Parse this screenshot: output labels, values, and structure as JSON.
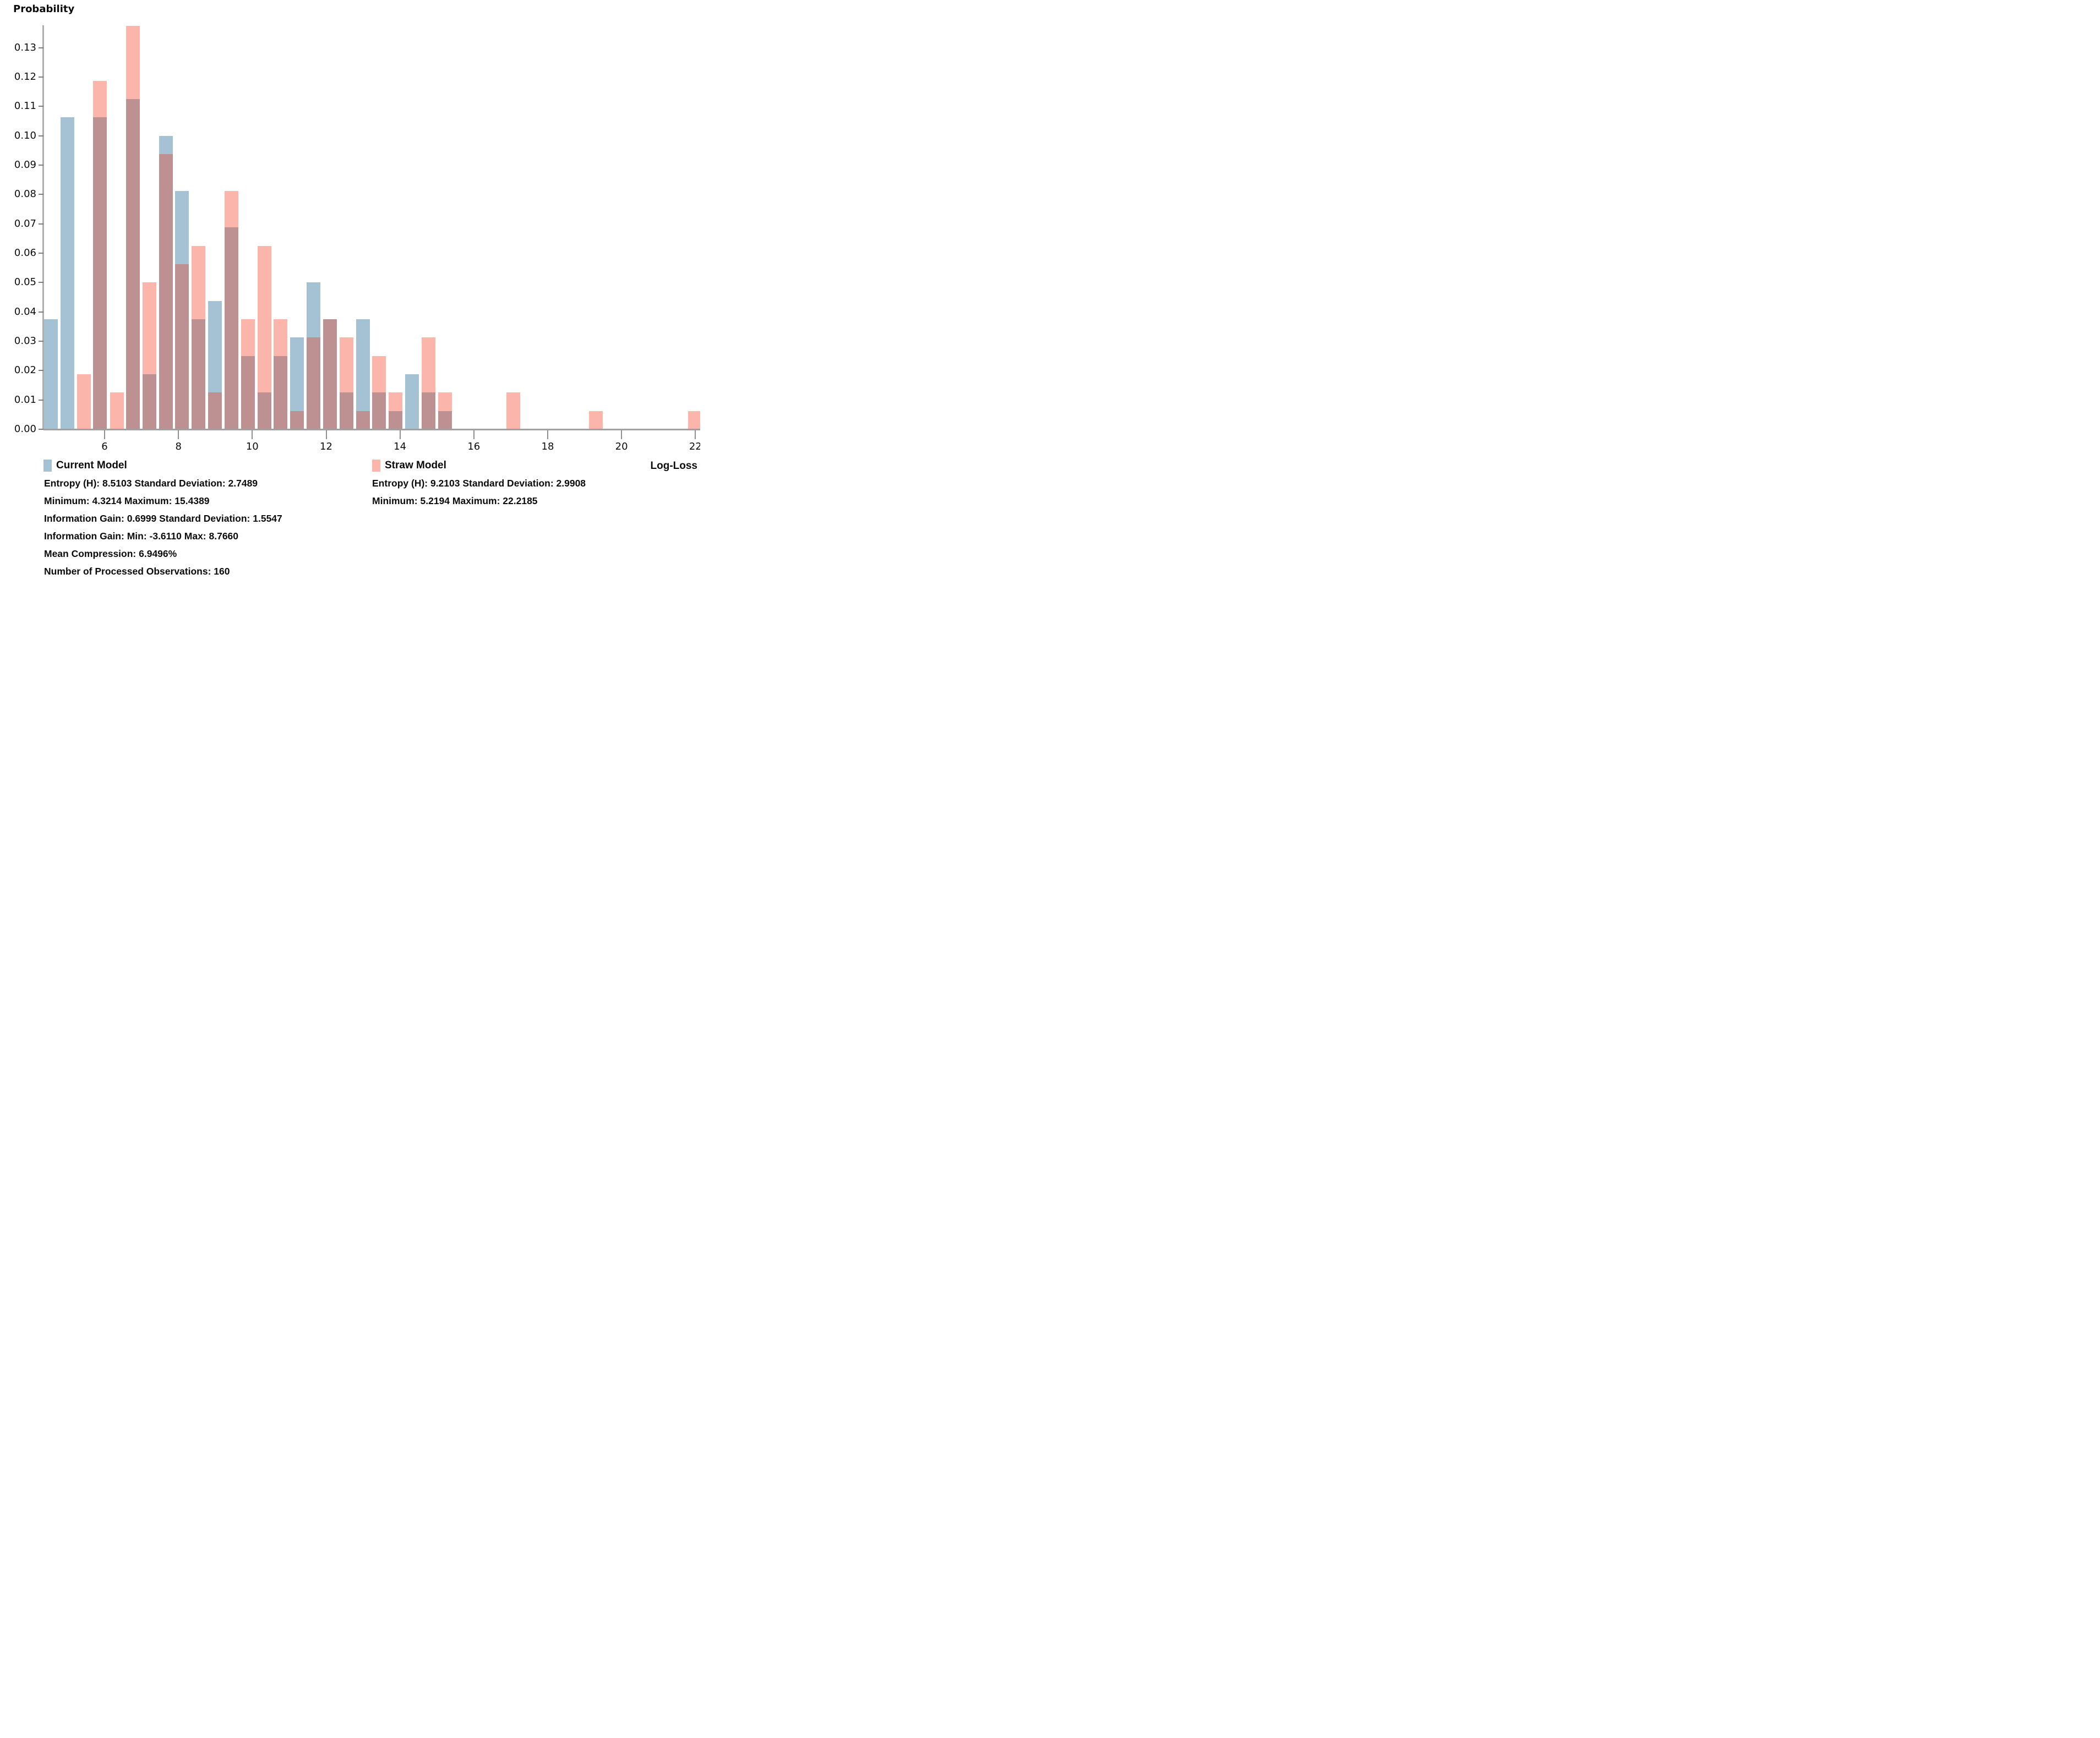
{
  "axis": {
    "y_title": "Probability",
    "x_title": "Log-Loss"
  },
  "legend": {
    "current": {
      "label": "Current Model",
      "color": "#a5c1d4"
    },
    "straw": {
      "label": "Straw Model",
      "color": "#fbb5ab"
    }
  },
  "stats": {
    "current": [
      "Entropy (H): 8.5103 Standard Deviation: 2.7489",
      "Minimum: 4.3214 Maximum: 15.4389",
      "Information Gain: 0.6999 Standard Deviation: 1.5547",
      "Information Gain: Min: -3.6110 Max: 8.7660",
      "Mean Compression: 6.9496%",
      "Number of Processed Observations: 160"
    ],
    "straw": [
      "Entropy (H): 9.2103 Standard Deviation: 2.9908",
      "Minimum: 5.2194 Maximum: 22.2185"
    ]
  },
  "chart_data": {
    "type": "bar",
    "subtype": "overlaid-histogram",
    "ylabel": "Probability",
    "xlabel": "Log-Loss",
    "x_ticks": [
      6,
      8,
      10,
      12,
      14,
      16,
      18,
      20,
      22
    ],
    "y_ticks": [
      "0.00",
      "0.01",
      "0.02",
      "0.03",
      "0.04",
      "0.05",
      "0.06",
      "0.07",
      "0.08",
      "0.09",
      "0.10",
      "0.11",
      "0.12",
      "0.13"
    ],
    "x_range": [
      4.345,
      22.13
    ],
    "y_range": [
      0,
      0.1376
    ],
    "grid": false,
    "legend_position": "bottom",
    "colors": {
      "current": "#a5c1d4",
      "straw": "#fbb5ab",
      "overlap": "#bd9091",
      "axis_line": "#aeaeae",
      "baseline": "#a1a1a1",
      "tick": "#8f8f8f"
    },
    "series": [
      {
        "name": "Current Model",
        "color": "#a5c1d4"
      },
      {
        "name": "Straw Model",
        "color": "#fbb5ab"
      }
    ],
    "bar_pad_units": 0.035,
    "bars": [
      {
        "x0": 4.3214,
        "x1": 4.7661,
        "current": 0.0375,
        "straw": 0
      },
      {
        "x0": 4.7661,
        "x1": 5.2108,
        "current": 0.10625,
        "straw": 0
      },
      {
        "x0": 5.2194,
        "x1": 5.6667,
        "current": 0,
        "straw": 0.01875
      },
      {
        "x0": 5.6555,
        "x1": 6.1002,
        "current": 0.10625,
        "straw": 0.11875
      },
      {
        "x0": 6.114,
        "x1": 6.5613,
        "current": 0,
        "straw": 0.0125
      },
      {
        "x0": 6.5449,
        "x1": 6.9896,
        "current": 0.1125,
        "straw": 0.1375
      },
      {
        "x0": 6.9896,
        "x1": 7.4343,
        "current": 0.01875,
        "straw": 0.05
      },
      {
        "x0": 7.4343,
        "x1": 7.879,
        "current": 0.1,
        "straw": 0.09375
      },
      {
        "x0": 7.879,
        "x1": 8.3237,
        "current": 0.08125,
        "straw": 0.05625
      },
      {
        "x0": 8.3237,
        "x1": 8.7684,
        "current": 0.0375,
        "straw": 0.0625
      },
      {
        "x0": 8.7684,
        "x1": 9.2131,
        "current": 0.04375,
        "straw": 0.0125
      },
      {
        "x0": 9.2131,
        "x1": 9.6578,
        "current": 0.06875,
        "straw": 0.08125
      },
      {
        "x0": 9.6578,
        "x1": 10.1025,
        "current": 0.025,
        "straw": 0.0375
      },
      {
        "x0": 10.1025,
        "x1": 10.5472,
        "current": 0.0125,
        "straw": 0.0625
      },
      {
        "x0": 10.5472,
        "x1": 10.9919,
        "current": 0.025,
        "straw": 0.0375
      },
      {
        "x0": 10.9919,
        "x1": 11.4366,
        "current": 0.03125,
        "straw": 0.00625
      },
      {
        "x0": 11.4366,
        "x1": 11.8813,
        "current": 0.05,
        "straw": 0.03125
      },
      {
        "x0": 11.8813,
        "x1": 12.326,
        "current": 0.0375,
        "straw": 0.0375
      },
      {
        "x0": 12.326,
        "x1": 12.7707,
        "current": 0.0125,
        "straw": 0.03125
      },
      {
        "x0": 12.7707,
        "x1": 13.2154,
        "current": 0.0375,
        "straw": 0.00625
      },
      {
        "x0": 13.2154,
        "x1": 13.6601,
        "current": 0.0125,
        "straw": 0.025
      },
      {
        "x0": 13.6601,
        "x1": 14.1048,
        "current": 0.00625,
        "straw": 0.0125
      },
      {
        "x0": 14.1048,
        "x1": 14.5495,
        "current": 0.01875,
        "straw": 0
      },
      {
        "x0": 14.5495,
        "x1": 14.9942,
        "current": 0.0125,
        "straw": 0.03125
      },
      {
        "x0": 14.9942,
        "x1": 15.4389,
        "current": 0.00625,
        "straw": 0.0125
      },
      {
        "x0": 16.8493,
        "x1": 17.2966,
        "current": 0,
        "straw": 0.0125
      },
      {
        "x0": 19.0858,
        "x1": 19.5331,
        "current": 0,
        "straw": 0.00625
      },
      {
        "x0": 21.7712,
        "x1": 22.2185,
        "current": 0,
        "straw": 0.00625
      }
    ]
  }
}
